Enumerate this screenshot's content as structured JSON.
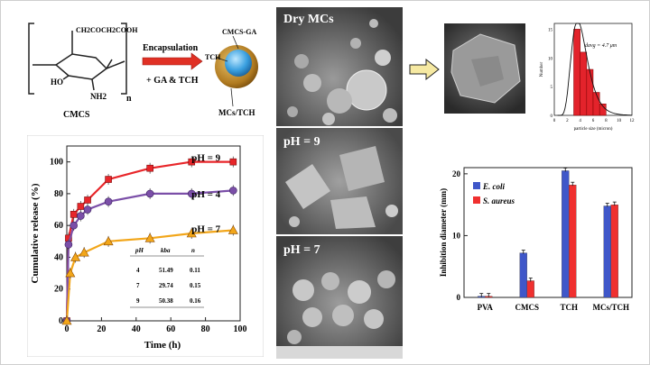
{
  "scheme": {
    "chain_label": "CH2COCH2COOH",
    "ho_label": "HO",
    "nh2_label": "NH2",
    "n_label": "n",
    "cmcs_label": "CMCS",
    "arrow_top": "Encapsulation",
    "arrow_bottom": "+ GA & TCH",
    "capsule_label": "CMCS-GA",
    "tch_label": "TCH",
    "product_label": "MCs/TCH"
  },
  "sem": {
    "dry_label": "Dry MCs",
    "ph9_label": "pH = 9",
    "ph7_label": "pH = 7"
  },
  "release_table": {
    "headers": [
      "pH",
      "kba",
      "n"
    ],
    "rows": [
      [
        "4",
        "51.49",
        "0.11"
      ],
      [
        "7",
        "29.74",
        "0.15"
      ],
      [
        "9",
        "50.38",
        "0.16"
      ]
    ]
  },
  "size_annotation": "davg = 4.7 μm",
  "chart_data": [
    {
      "type": "line",
      "title": "",
      "xlabel": "Time (h)",
      "ylabel": "Cumulative release (%)",
      "xlim": [
        0,
        100
      ],
      "ylim": [
        0,
        110
      ],
      "x_ticks": [
        0,
        20,
        40,
        60,
        80,
        100
      ],
      "y_ticks": [
        0,
        20,
        40,
        60,
        80,
        100
      ],
      "series": [
        {
          "name": "pH = 9",
          "color": "#e8262a",
          "marker": "square",
          "x": [
            0,
            1,
            4,
            8,
            12,
            24,
            48,
            72,
            96
          ],
          "y": [
            0,
            52,
            67,
            72,
            76,
            89,
            96,
            100,
            100
          ]
        },
        {
          "name": "pH = 4",
          "color": "#7b4fa8",
          "marker": "circle",
          "x": [
            0,
            1,
            4,
            8,
            12,
            24,
            48,
            72,
            96
          ],
          "y": [
            0,
            48,
            60,
            66,
            70,
            75,
            80,
            80,
            82
          ]
        },
        {
          "name": "pH = 7",
          "color": "#f2a61a",
          "marker": "triangle",
          "x": [
            0,
            2,
            5,
            10,
            24,
            48,
            72,
            96
          ],
          "y": [
            0,
            30,
            40,
            43,
            50,
            52,
            55,
            57
          ]
        }
      ]
    },
    {
      "type": "bar",
      "title": "",
      "xlabel": "particle size (micron)",
      "ylabel": "Number",
      "xlim": [
        0,
        12
      ],
      "ylim": [
        0,
        16
      ],
      "x_ticks": [
        0,
        2,
        4,
        6,
        8,
        10,
        12
      ],
      "y_ticks": [
        0,
        5,
        10,
        15
      ],
      "bin_edges": [
        3,
        4,
        5,
        6,
        7,
        8
      ],
      "values": [
        15,
        11,
        8,
        4,
        2
      ]
    },
    {
      "type": "bar",
      "title": "",
      "xlabel": "",
      "ylabel": "Inhibition diameter (mm)",
      "ylim": [
        0,
        21
      ],
      "y_ticks": [
        0,
        10,
        20
      ],
      "categories": [
        "PVA",
        "CMCS",
        "TCH",
        "MCs/TCH"
      ],
      "series": [
        {
          "name": "E. coli",
          "color": "#3f57c9",
          "values": [
            0.2,
            7.2,
            20.5,
            14.8
          ]
        },
        {
          "name": "S. aureus",
          "color": "#f0302f",
          "values": [
            0.2,
            2.7,
            18.2,
            15.0
          ]
        }
      ]
    }
  ]
}
